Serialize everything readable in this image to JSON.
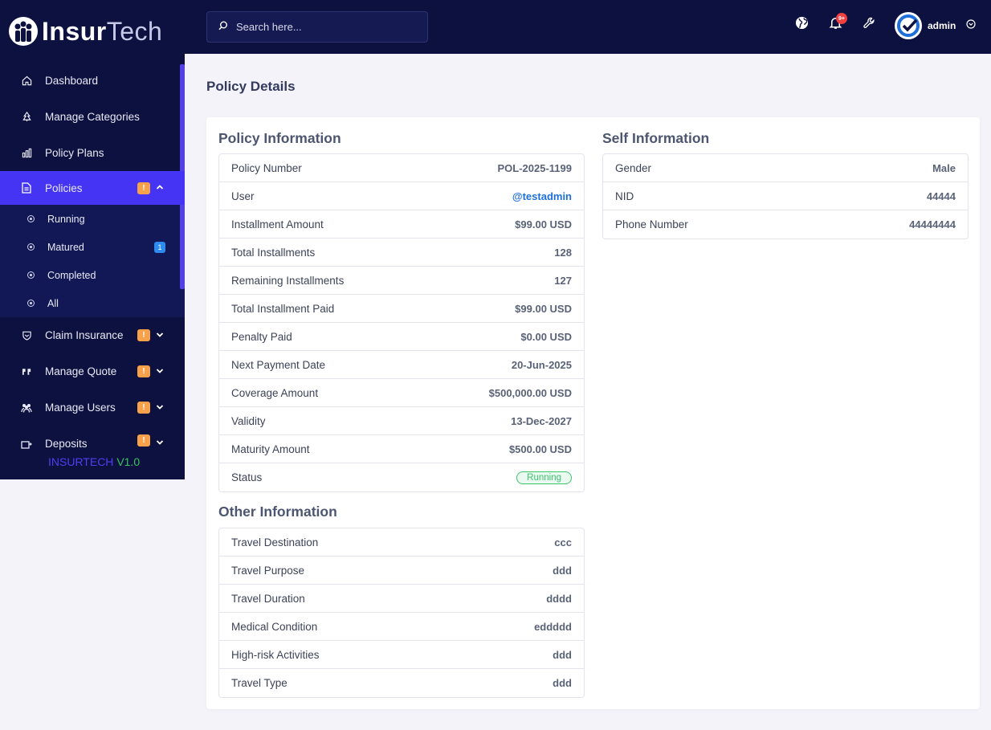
{
  "brand": {
    "name_bold": "Insur",
    "name_light": "Tech"
  },
  "sidebar": {
    "items": [
      {
        "label": "Dashboard",
        "icon": "home-icon"
      },
      {
        "label": "Manage Categories",
        "icon": "tree-icon"
      },
      {
        "label": "Policy Plans",
        "icon": "bar-chart-icon"
      },
      {
        "label": "Policies",
        "icon": "document-icon",
        "badge": "!",
        "active": true
      },
      {
        "label": "Claim Insurance",
        "icon": "shield-icon",
        "badge": "!"
      },
      {
        "label": "Manage Quote",
        "icon": "quote-icon",
        "badge": "!"
      },
      {
        "label": "Manage Users",
        "icon": "users-icon",
        "badge": "!"
      },
      {
        "label": "Deposits",
        "icon": "deposit-icon",
        "badge": "!"
      }
    ],
    "submenu": [
      {
        "label": "Running"
      },
      {
        "label": "Matured",
        "badge": "1"
      },
      {
        "label": "Completed"
      },
      {
        "label": "All"
      }
    ],
    "version_name": "INSURTECH",
    "version_number": "V1.0"
  },
  "header": {
    "search_placeholder": "Search here...",
    "notification_count": "9+",
    "user_name": "admin"
  },
  "page": {
    "title": "Policy Details"
  },
  "policy_info": {
    "title": "Policy Information",
    "rows": [
      {
        "label": "Policy Number",
        "value": "POL-2025-1199"
      },
      {
        "label": "User",
        "value": "@testadmin"
      },
      {
        "label": "Installment Amount",
        "value": "$99.00 USD"
      },
      {
        "label": "Total Installments",
        "value": "128"
      },
      {
        "label": "Remaining Installments",
        "value": "127"
      },
      {
        "label": "Total Installment Paid",
        "value": "$99.00 USD"
      },
      {
        "label": "Penalty Paid",
        "value": "$0.00 USD"
      },
      {
        "label": "Next Payment Date",
        "value": "20-Jun-2025"
      },
      {
        "label": "Coverage Amount",
        "value": "$500,000.00 USD"
      },
      {
        "label": "Validity",
        "value": "13-Dec-2027"
      },
      {
        "label": "Maturity Amount",
        "value": "$500.00 USD"
      },
      {
        "label": "Status",
        "value": "Running"
      }
    ]
  },
  "self_info": {
    "title": "Self Information",
    "rows": [
      {
        "label": "Gender",
        "value": "Male"
      },
      {
        "label": "NID",
        "value": "44444"
      },
      {
        "label": "Phone Number",
        "value": "44444444"
      }
    ]
  },
  "other_info": {
    "title": "Other Information",
    "rows": [
      {
        "label": "Travel Destination",
        "value": "ccc"
      },
      {
        "label": "Travel Purpose",
        "value": "ddd"
      },
      {
        "label": "Travel Duration",
        "value": "dddd"
      },
      {
        "label": "Medical Condition",
        "value": "eddddd"
      },
      {
        "label": "High-risk Activities",
        "value": "ddd"
      },
      {
        "label": "Travel Type",
        "value": "ddd"
      }
    ]
  },
  "colors": {
    "sidebar_bg": "#0d1140",
    "active_item": "#4634f4",
    "warning_badge": "#f7a24b",
    "info_badge": "#2e8cf0",
    "status_running": "#3cc46c",
    "link": "#1e6fd9"
  }
}
